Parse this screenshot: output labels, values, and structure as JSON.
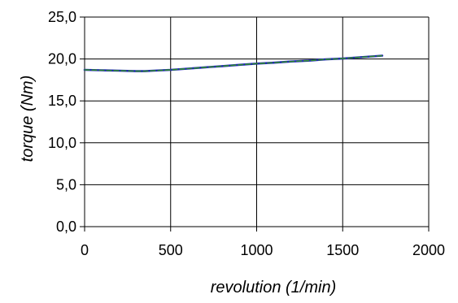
{
  "chart_data": {
    "type": "line",
    "title": "",
    "xlabel": "revolution (1/min)",
    "ylabel": "torque (Nm)",
    "xlim": [
      0,
      2000
    ],
    "ylim": [
      0,
      25
    ],
    "x_ticks": [
      0,
      500,
      1000,
      1500,
      2000
    ],
    "x_tick_labels": [
      "0",
      "500",
      "1000",
      "1500",
      "2000"
    ],
    "y_ticks": [
      0,
      5,
      10,
      15,
      20,
      25
    ],
    "y_tick_labels": [
      "0,0",
      "5,0",
      "10,0",
      "15,0",
      "20,0",
      "25,0"
    ],
    "grid": true,
    "legend": "none",
    "series": [
      {
        "color": "#1f1fbf",
        "x": [
          0,
          100,
          200,
          300,
          350,
          400,
          500,
          600,
          700,
          800,
          900,
          1000,
          1100,
          1200,
          1300,
          1400,
          1500,
          1600,
          1700,
          1730
        ],
        "y": [
          18.7,
          18.65,
          18.6,
          18.55,
          18.55,
          18.6,
          18.7,
          18.85,
          19.0,
          19.15,
          19.3,
          19.45,
          19.55,
          19.7,
          19.8,
          19.95,
          20.05,
          20.2,
          20.35,
          20.4
        ]
      },
      {
        "color": "#2e8b2e",
        "dash": true,
        "x": [
          0,
          100,
          200,
          300,
          350,
          400,
          500,
          600,
          700,
          800,
          900,
          1000,
          1100,
          1200,
          1300,
          1400,
          1500,
          1600,
          1700,
          1730
        ],
        "y": [
          18.7,
          18.65,
          18.6,
          18.55,
          18.55,
          18.6,
          18.7,
          18.85,
          19.0,
          19.15,
          19.3,
          19.45,
          19.55,
          19.7,
          19.8,
          19.95,
          20.05,
          20.2,
          20.35,
          20.4
        ]
      }
    ]
  }
}
